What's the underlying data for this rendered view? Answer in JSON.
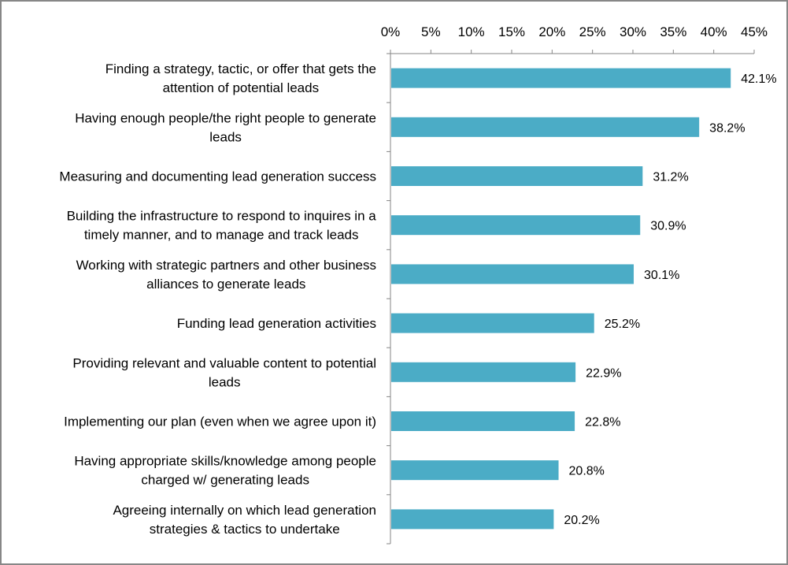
{
  "chart_data": {
    "type": "bar",
    "orientation": "horizontal",
    "title": "",
    "xlabel": "",
    "ylabel": "",
    "xlim": [
      0,
      45
    ],
    "x_tick_position": "top",
    "x_ticks": [
      "0%",
      "5%",
      "10%",
      "15%",
      "20%",
      "25%",
      "30%",
      "35%",
      "40%",
      "45%"
    ],
    "grid": false,
    "legend": "none",
    "bar_color": "#4BACC6",
    "categories": [
      [
        "Finding a strategy, tactic, or offer that gets the",
        "attention of potential leads"
      ],
      [
        "Having enough people/the right people to generate",
        "leads"
      ],
      [
        "Measuring and documenting lead generation success"
      ],
      [
        "Building the infrastructure to respond to inquires in a",
        "timely manner, and to manage and track leads"
      ],
      [
        "Working with strategic partners and other business",
        "alliances to generate leads"
      ],
      [
        "Funding lead generation activities"
      ],
      [
        "Providing relevant and valuable content to potential",
        "leads"
      ],
      [
        "Implementing our plan (even when we agree upon it)"
      ],
      [
        "Having appropriate skills/knowledge among people",
        "charged w/ generating leads"
      ],
      [
        "Agreeing internally on which lead generation",
        "strategies & tactics to undertake"
      ]
    ],
    "values": [
      42.1,
      38.2,
      31.2,
      30.9,
      30.1,
      25.2,
      22.9,
      22.8,
      20.8,
      20.2
    ],
    "data_labels": [
      "42.1%",
      "38.2%",
      "31.2%",
      "30.9%",
      "30.1%",
      "25.2%",
      "22.9%",
      "22.8%",
      "20.8%",
      "20.2%"
    ]
  }
}
